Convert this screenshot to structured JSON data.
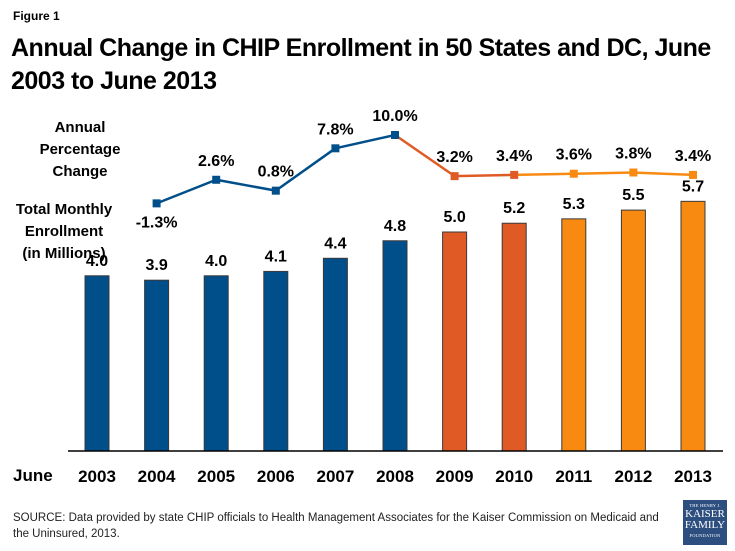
{
  "figure_label": "Figure 1",
  "title": "Annual Change in CHIP Enrollment in 50 States and DC, June 2003 to June 2013",
  "labels": {
    "pct_line1": "Annual",
    "pct_line2": "Percentage",
    "pct_line3": "Change",
    "enr_line1": "Total Monthly",
    "enr_line2": "Enrollment",
    "enr_line3": "(in Millions)",
    "xaxis_prefix": "June"
  },
  "source": "SOURCE: Data provided by state CHIP officials to Health Management Associates for the Kaiser Commission on Medicaid and the Uninsured, 2013.",
  "logo": {
    "line1": "THE HENRY J.",
    "line2": "KAISER",
    "line3": "FAMILY",
    "line4": "FOUNDATION"
  },
  "colors": {
    "blue": "#004f8a",
    "dark_orange": "#e05a26",
    "light_orange": "#f88a12",
    "logo_bg": "#2d4f7f"
  },
  "chart_data": [
    {
      "type": "bar",
      "title": "Total Monthly Enrollment (in Millions)",
      "xlabel": "June",
      "ylabel": "Total Monthly Enrollment (in Millions)",
      "categories": [
        "2003",
        "2004",
        "2005",
        "2006",
        "2007",
        "2008",
        "2009",
        "2010",
        "2011",
        "2012",
        "2013"
      ],
      "values": [
        4.0,
        3.9,
        4.0,
        4.1,
        4.4,
        4.8,
        5.0,
        5.2,
        5.3,
        5.5,
        5.7
      ],
      "value_labels": [
        "4.0",
        "3.9",
        "4.0",
        "4.1",
        "4.4",
        "4.8",
        "5.0",
        "5.2",
        "5.3",
        "5.5",
        "5.7"
      ],
      "bar_colors": [
        "#004f8a",
        "#004f8a",
        "#004f8a",
        "#004f8a",
        "#004f8a",
        "#004f8a",
        "#e05a26",
        "#e05a26",
        "#f88a12",
        "#f88a12",
        "#f88a12"
      ],
      "ylim": [
        0,
        6
      ],
      "grid": false,
      "legend": "none"
    },
    {
      "type": "line",
      "title": "Annual Percentage Change",
      "categories": [
        "2004",
        "2005",
        "2006",
        "2007",
        "2008",
        "2009",
        "2010",
        "2011",
        "2012",
        "2013"
      ],
      "values": [
        -1.3,
        2.6,
        0.8,
        7.8,
        10.0,
        3.2,
        3.4,
        3.6,
        3.8,
        3.4
      ],
      "value_labels": [
        "-1.3%",
        "2.6%",
        "0.8%",
        "7.8%",
        "10.0%",
        "3.2%",
        "3.4%",
        "3.6%",
        "3.8%",
        "3.4%"
      ],
      "point_colors": [
        "#004f8a",
        "#004f8a",
        "#004f8a",
        "#004f8a",
        "#004f8a",
        "#e05a26",
        "#e05a26",
        "#f88a12",
        "#f88a12",
        "#f88a12"
      ],
      "segment_colors": [
        "#004f8a",
        "#004f8a",
        "#004f8a",
        "#004f8a",
        "#e05a26",
        "#e05a26",
        "#f88a12",
        "#f88a12",
        "#f88a12"
      ],
      "ylim": [
        -2,
        11
      ],
      "grid": false,
      "legend": "none"
    }
  ]
}
